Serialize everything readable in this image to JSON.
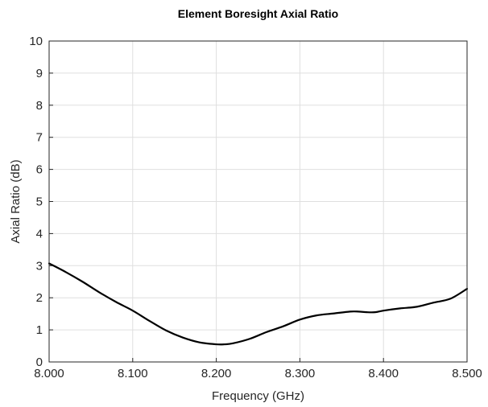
{
  "chart_data": {
    "type": "line",
    "title": "Element Boresight Axial Ratio",
    "xlabel": "Frequency (GHz)",
    "ylabel": "Axial Ratio (dB)",
    "xlim": [
      8.0,
      8.5
    ],
    "ylim": [
      0,
      10
    ],
    "xticks": [
      8.0,
      8.1,
      8.2,
      8.3,
      8.4,
      8.5
    ],
    "xtick_labels": [
      "8.000",
      "8.100",
      "8.200",
      "8.300",
      "8.400",
      "8.500"
    ],
    "yticks": [
      0,
      1,
      2,
      3,
      4,
      5,
      6,
      7,
      8,
      9,
      10
    ],
    "ytick_labels": [
      "0",
      "1",
      "2",
      "3",
      "4",
      "5",
      "6",
      "7",
      "8",
      "9",
      "10"
    ],
    "grid": true,
    "series": [
      {
        "color": "#000000",
        "x": [
          8.0,
          8.02,
          8.04,
          8.06,
          8.08,
          8.1,
          8.12,
          8.14,
          8.16,
          8.18,
          8.2,
          8.21,
          8.22,
          8.24,
          8.26,
          8.28,
          8.3,
          8.32,
          8.34,
          8.36,
          8.37,
          8.38,
          8.39,
          8.4,
          8.42,
          8.44,
          8.46,
          8.48,
          8.5
        ],
        "y": [
          3.07,
          2.8,
          2.5,
          2.17,
          1.87,
          1.6,
          1.28,
          0.98,
          0.76,
          0.61,
          0.55,
          0.55,
          0.58,
          0.72,
          0.93,
          1.11,
          1.32,
          1.45,
          1.51,
          1.57,
          1.57,
          1.55,
          1.55,
          1.6,
          1.67,
          1.72,
          1.85,
          1.97,
          2.28
        ]
      }
    ]
  }
}
